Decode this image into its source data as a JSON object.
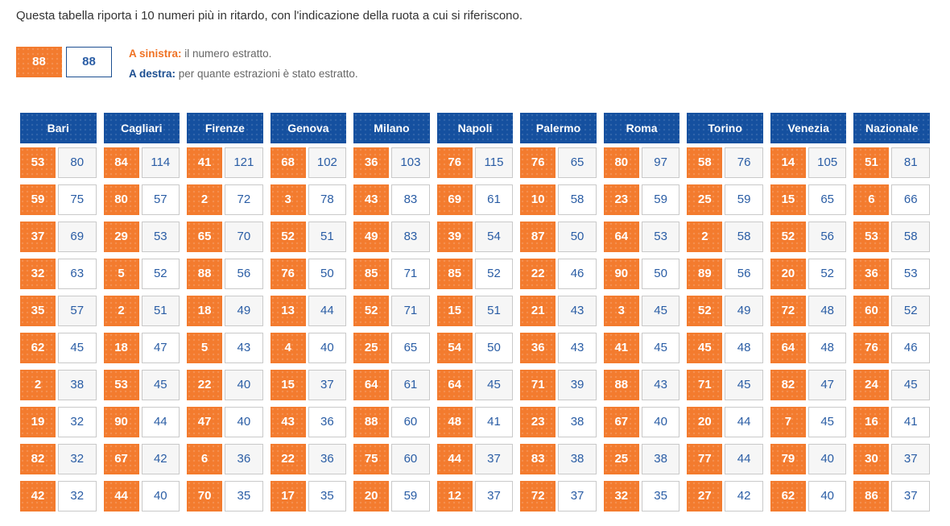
{
  "intro": "Questa tabella riporta i 10 numeri più in ritardo, con l'indicazione della ruota a cui si riferiscono.",
  "legend": {
    "sample_number": "88",
    "sample_delay": "88",
    "left_label": "A sinistra:",
    "left_text": "il numero estratto.",
    "right_label": "A destra:",
    "right_text": "per quante estrazioni è stato estratto."
  },
  "colors": {
    "orange": "#f37b2e",
    "header_blue": "#15509f",
    "legend_blue": "#1d4f91",
    "number_text_blue": "#2a5da5",
    "cell_border": "#c9c9c9",
    "alt_row_bg": "#f6f6f6",
    "body_text": "#333333",
    "legend_gray_text": "#666666"
  },
  "table": {
    "wheels": [
      {
        "name": "Bari",
        "entries": [
          [
            53,
            80
          ],
          [
            59,
            75
          ],
          [
            37,
            69
          ],
          [
            32,
            63
          ],
          [
            35,
            57
          ],
          [
            62,
            45
          ],
          [
            2,
            38
          ],
          [
            19,
            32
          ],
          [
            82,
            32
          ],
          [
            42,
            32
          ]
        ]
      },
      {
        "name": "Cagliari",
        "entries": [
          [
            84,
            114
          ],
          [
            80,
            57
          ],
          [
            29,
            53
          ],
          [
            5,
            52
          ],
          [
            2,
            51
          ],
          [
            18,
            47
          ],
          [
            53,
            45
          ],
          [
            90,
            44
          ],
          [
            67,
            42
          ],
          [
            44,
            40
          ]
        ]
      },
      {
        "name": "Firenze",
        "entries": [
          [
            41,
            121
          ],
          [
            2,
            72
          ],
          [
            65,
            70
          ],
          [
            88,
            56
          ],
          [
            18,
            49
          ],
          [
            5,
            43
          ],
          [
            22,
            40
          ],
          [
            47,
            40
          ],
          [
            6,
            36
          ],
          [
            70,
            35
          ]
        ]
      },
      {
        "name": "Genova",
        "entries": [
          [
            68,
            102
          ],
          [
            3,
            78
          ],
          [
            52,
            51
          ],
          [
            76,
            50
          ],
          [
            13,
            44
          ],
          [
            4,
            40
          ],
          [
            15,
            37
          ],
          [
            43,
            36
          ],
          [
            22,
            36
          ],
          [
            17,
            35
          ]
        ]
      },
      {
        "name": "Milano",
        "entries": [
          [
            36,
            103
          ],
          [
            43,
            83
          ],
          [
            49,
            83
          ],
          [
            85,
            71
          ],
          [
            52,
            71
          ],
          [
            25,
            65
          ],
          [
            64,
            61
          ],
          [
            88,
            60
          ],
          [
            75,
            60
          ],
          [
            20,
            59
          ]
        ]
      },
      {
        "name": "Napoli",
        "entries": [
          [
            76,
            115
          ],
          [
            69,
            61
          ],
          [
            39,
            54
          ],
          [
            85,
            52
          ],
          [
            15,
            51
          ],
          [
            54,
            50
          ],
          [
            64,
            45
          ],
          [
            48,
            41
          ],
          [
            44,
            37
          ],
          [
            12,
            37
          ]
        ]
      },
      {
        "name": "Palermo",
        "entries": [
          [
            76,
            65
          ],
          [
            10,
            58
          ],
          [
            87,
            50
          ],
          [
            22,
            46
          ],
          [
            21,
            43
          ],
          [
            36,
            43
          ],
          [
            71,
            39
          ],
          [
            23,
            38
          ],
          [
            83,
            38
          ],
          [
            72,
            37
          ]
        ]
      },
      {
        "name": "Roma",
        "entries": [
          [
            80,
            97
          ],
          [
            23,
            59
          ],
          [
            64,
            53
          ],
          [
            90,
            50
          ],
          [
            3,
            45
          ],
          [
            41,
            45
          ],
          [
            88,
            43
          ],
          [
            67,
            40
          ],
          [
            25,
            38
          ],
          [
            32,
            35
          ]
        ]
      },
      {
        "name": "Torino",
        "entries": [
          [
            58,
            76
          ],
          [
            25,
            59
          ],
          [
            2,
            58
          ],
          [
            89,
            56
          ],
          [
            52,
            49
          ],
          [
            45,
            48
          ],
          [
            71,
            45
          ],
          [
            20,
            44
          ],
          [
            77,
            44
          ],
          [
            27,
            42
          ]
        ]
      },
      {
        "name": "Venezia",
        "entries": [
          [
            14,
            105
          ],
          [
            15,
            65
          ],
          [
            52,
            56
          ],
          [
            20,
            52
          ],
          [
            72,
            48
          ],
          [
            64,
            48
          ],
          [
            82,
            47
          ],
          [
            7,
            45
          ],
          [
            79,
            40
          ],
          [
            62,
            40
          ]
        ]
      },
      {
        "name": "Nazionale",
        "entries": [
          [
            51,
            81
          ],
          [
            6,
            66
          ],
          [
            53,
            58
          ],
          [
            36,
            53
          ],
          [
            60,
            52
          ],
          [
            76,
            46
          ],
          [
            24,
            45
          ],
          [
            16,
            41
          ],
          [
            30,
            37
          ],
          [
            86,
            37
          ]
        ]
      }
    ]
  }
}
